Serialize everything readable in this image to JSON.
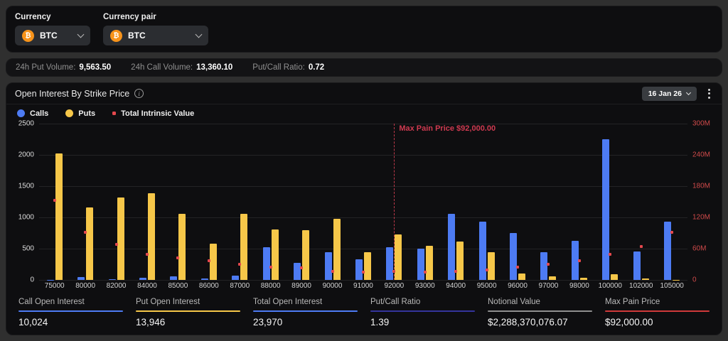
{
  "filters": {
    "currency": {
      "label": "Currency",
      "value": "BTC"
    },
    "currency_pair": {
      "label": "Currency pair",
      "value": "BTC"
    },
    "coin_symbol": "₿"
  },
  "volume_bar": {
    "items": [
      {
        "label": "24h Put Volume:",
        "value": "9,563.50"
      },
      {
        "label": "24h Call Volume:",
        "value": "13,360.10"
      },
      {
        "label": "Put/Call Ratio:",
        "value": "0.72"
      }
    ]
  },
  "chart_header": {
    "title": "Open Interest By Strike Price",
    "date_selector": "16 Jan 26"
  },
  "legend": {
    "items": [
      {
        "label": "Calls",
        "color": "#4d7bf3",
        "shape": "circle"
      },
      {
        "label": "Puts",
        "color": "#f6c749",
        "shape": "circle"
      },
      {
        "label": "Total Intrinsic Value",
        "color": "#e5484d",
        "shape": "small"
      }
    ]
  },
  "chart_data": {
    "type": "bar",
    "title": "Open Interest By Strike Price",
    "categories": [
      "75000",
      "80000",
      "82000",
      "84000",
      "85000",
      "86000",
      "87000",
      "88000",
      "89000",
      "90000",
      "91000",
      "92000",
      "93000",
      "94000",
      "95000",
      "96000",
      "97000",
      "98000",
      "100000",
      "102000",
      "105000"
    ],
    "series": [
      {
        "name": "Calls",
        "type": "bar",
        "axis": "left",
        "color": "#4d7bf3",
        "values": [
          5,
          50,
          10,
          35,
          55,
          20,
          70,
          520,
          270,
          440,
          330,
          520,
          495,
          1060,
          935,
          755,
          440,
          620,
          2250,
          460,
          935
        ]
      },
      {
        "name": "Puts",
        "type": "bar",
        "axis": "left",
        "color": "#f6c749",
        "values": [
          2020,
          1160,
          1320,
          1385,
          1060,
          575,
          1060,
          810,
          790,
          980,
          440,
          730,
          540,
          610,
          440,
          100,
          55,
          35,
          90,
          20,
          5
        ]
      },
      {
        "name": "Total Intrinsic Value",
        "type": "scatter",
        "axis": "right",
        "color": "#e5484d",
        "unit": "millions",
        "values": [
          150,
          88,
          66,
          47,
          40,
          34,
          27,
          22,
          21,
          14,
          12,
          13,
          12,
          14,
          16,
          22,
          27,
          34,
          46,
          62,
          89
        ]
      }
    ],
    "left_axis": {
      "ticks_top_to_bottom": [
        "2500",
        "2000",
        "1500",
        "1000",
        "500",
        "0"
      ],
      "max": 2500,
      "min": 0
    },
    "right_axis": {
      "ticks_top_to_bottom": [
        "300M",
        "240M",
        "180M",
        "120M",
        "60M",
        "0"
      ],
      "max_millions": 300,
      "min": 0,
      "color": "#cf4a4a"
    },
    "annotation": {
      "label": "Max Pain Price $92,000.00",
      "category": "92000",
      "color": "#cf3a50"
    },
    "grid": true,
    "legend_position": "top-left"
  },
  "stats_footer": {
    "items": [
      {
        "label": "Call Open Interest",
        "value": "10,024",
        "underline_color": "#4d7bf3"
      },
      {
        "label": "Put Open Interest",
        "value": "13,946",
        "underline_color": "#f6c749"
      },
      {
        "label": "Total Open Interest",
        "value": "23,970",
        "underline_color": "#4d7bf3"
      },
      {
        "label": "Put/Call Ratio",
        "value": "1.39",
        "underline_color": "#34349c"
      },
      {
        "label": "Notional Value",
        "value": "$2,288,370,076.07",
        "underline_color": "#8f8f8f"
      },
      {
        "label": "Max Pain Price",
        "value": "$92,000.00",
        "underline_color": "#cf3a3a"
      }
    ]
  }
}
